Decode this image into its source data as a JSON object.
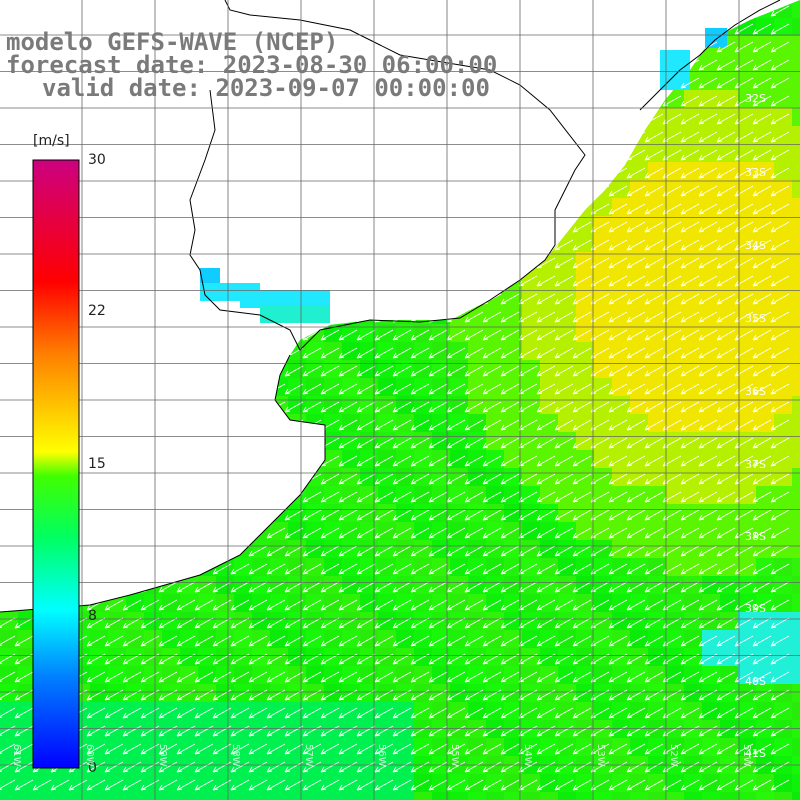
{
  "title": {
    "line1": "modelo GEFS-WAVE (NCEP)",
    "line2": "forecast date: 2023-08-30 06:00:00",
    "line3": "valid date: 2023-09-07 00:00:00"
  },
  "colorbar": {
    "unit": "[m/s]",
    "ticks": [
      "30",
      "22",
      "15",
      "8",
      "0"
    ],
    "min": 0,
    "max": 30
  },
  "lat_labels": [
    "32S",
    "33S",
    "34S",
    "35S",
    "36S",
    "37S",
    "38S",
    "39S",
    "40S",
    "41S"
  ],
  "lon_labels": [
    "61W",
    "60W",
    "59W",
    "58W",
    "57W",
    "56W",
    "55W",
    "54W",
    "53W",
    "52W",
    "51W"
  ],
  "colors": {
    "land": "#ffffff",
    "grid": "#666666",
    "coast": "#000000",
    "arrows": "#ffffff",
    "title": "#7a7a7a"
  },
  "wind_field": {
    "direction": "towards southwest",
    "typical_speed_ms": [
      8,
      15
    ]
  }
}
